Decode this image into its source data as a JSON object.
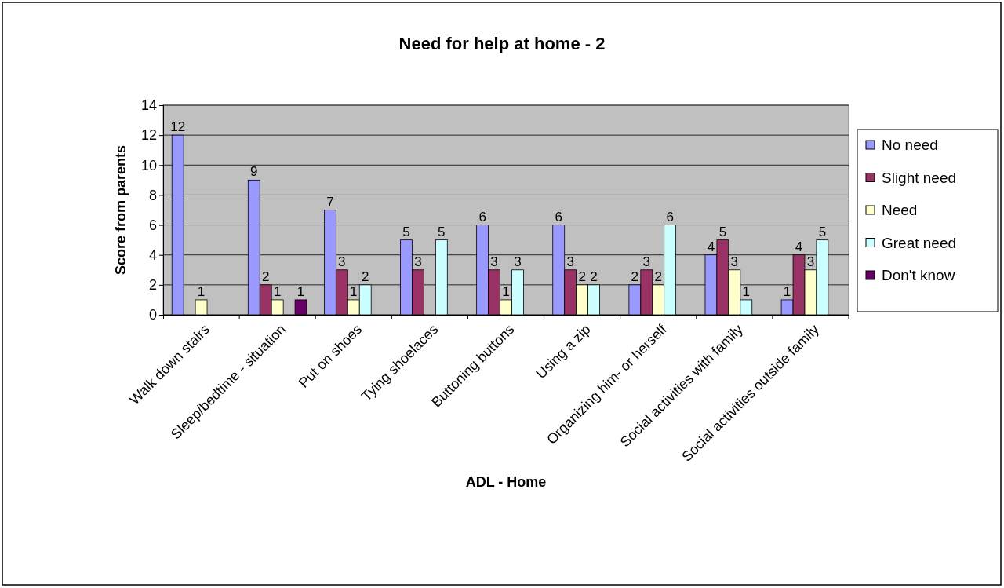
{
  "chart_data": {
    "type": "bar",
    "title": "Need for help at home - 2",
    "xlabel": "ADL - Home",
    "ylabel": "Score from parents",
    "categories": [
      "Walk down stairs",
      "Sleep/bedtime - situation",
      "Put on shoes",
      "Tying shoelaces",
      "Buttoning buttons",
      "Using a zip",
      "Organizing him- or herself",
      "Social activities with family",
      "Social activities outside family"
    ],
    "series": [
      {
        "name": "No need",
        "color": "#9999ff",
        "values": [
          12,
          9,
          7,
          5,
          6,
          6,
          2,
          4,
          1
        ]
      },
      {
        "name": "Slight need",
        "color": "#993366",
        "values": [
          null,
          2,
          3,
          3,
          3,
          3,
          3,
          5,
          4
        ]
      },
      {
        "name": "Need",
        "color": "#ffffcc",
        "values": [
          1,
          1,
          1,
          null,
          1,
          2,
          2,
          3,
          3
        ]
      },
      {
        "name": "Great need",
        "color": "#ccffff",
        "values": [
          null,
          null,
          2,
          5,
          3,
          2,
          6,
          1,
          5
        ]
      },
      {
        "name": "Don't know",
        "color": "#660066",
        "values": [
          null,
          1,
          null,
          null,
          null,
          null,
          null,
          null,
          null
        ]
      }
    ],
    "ylim": [
      0,
      14
    ],
    "yticks": [
      0,
      2,
      4,
      6,
      8,
      10,
      12,
      14
    ],
    "grid": "y",
    "legend": "right",
    "data_labels": true
  }
}
